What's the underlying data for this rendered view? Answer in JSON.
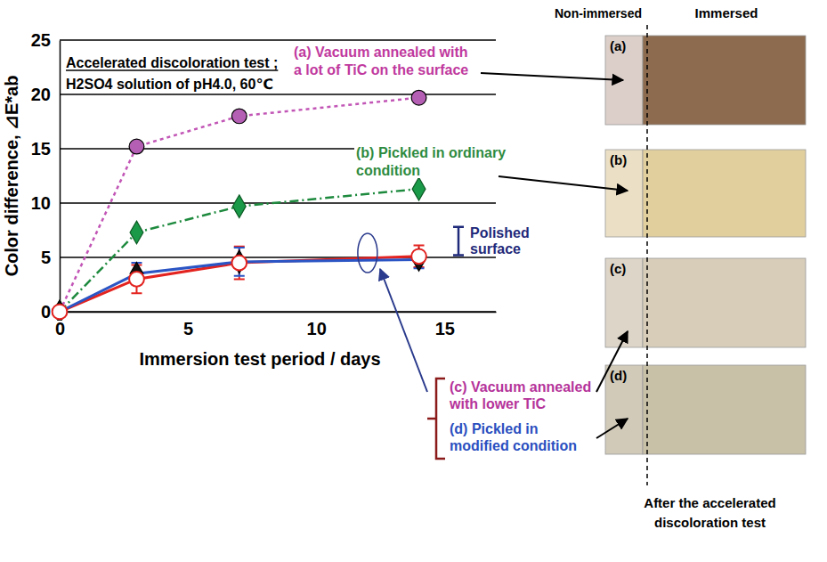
{
  "chart_data": {
    "type": "line",
    "x_label": "Immersion test period / days",
    "y_label": "Color difference, ⊿E*ab",
    "note": [
      "Accelerated discoloration test ;",
      "H2SO4 solution of pH4.0,  60℃"
    ],
    "x": [
      0,
      3,
      7,
      14
    ],
    "xlim": [
      0,
      17
    ],
    "xticks": [
      0,
      5,
      10,
      15
    ],
    "ylim": [
      0,
      25
    ],
    "yticks": [
      0,
      5,
      10,
      15,
      20,
      25
    ],
    "grid": true,
    "series": [
      {
        "name": "(a) Vacuum annealed with a lot of TiC on the surface",
        "color": "#c256b6",
        "marker": "circle",
        "line_style": "dotted",
        "values": [
          0,
          15.2,
          18.0,
          19.7
        ]
      },
      {
        "name": "(b) Pickled in ordinary condition",
        "color": "#1e8a3e",
        "marker": "diamond",
        "line_style": "dashdot",
        "values": [
          0,
          7.3,
          9.7,
          11.3
        ]
      },
      {
        "name": "(c) Vacuum annealed with lower TiC",
        "color": "#e3231f",
        "marker": "open_circle",
        "line_style": "solid",
        "values": [
          0,
          3.0,
          4.5,
          5.1
        ],
        "errors": [
          null,
          1.3,
          1.5,
          1.0
        ]
      },
      {
        "name": "(d) Pickled in modified condition",
        "color": "#2b55c4",
        "marker": "diamond",
        "line_style": "solid",
        "values": [
          0,
          3.5,
          4.6,
          4.8
        ],
        "errors": [
          null,
          1.0,
          1.3,
          0.8
        ]
      }
    ],
    "polished_surface": {
      "label": "Polished surface",
      "range": [
        5.2,
        7.8
      ]
    }
  },
  "photos": {
    "column_labels": [
      "Non-immersed",
      "Immersed"
    ],
    "panels": [
      "(a)",
      "(b)",
      "(c)",
      "(d)"
    ],
    "caption": "After the accelerated discoloration test"
  }
}
